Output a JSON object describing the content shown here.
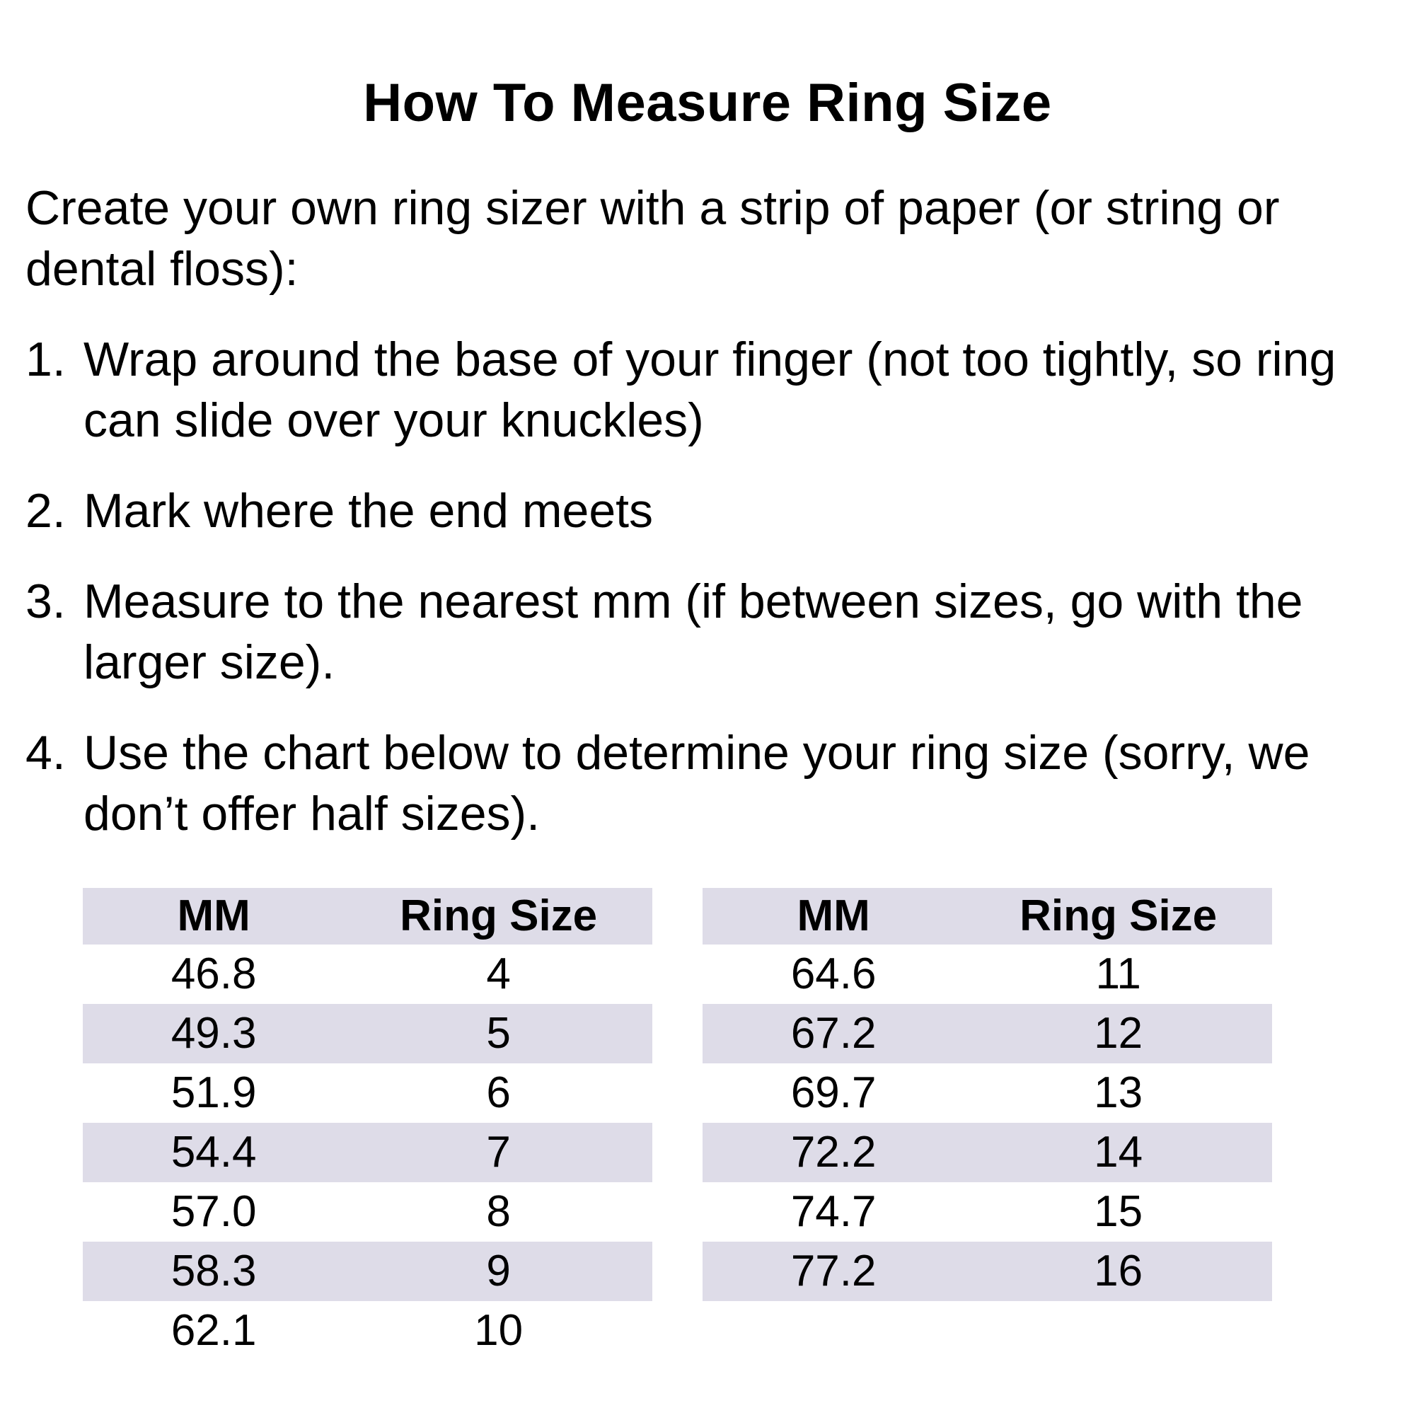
{
  "title": "How To Measure Ring Size",
  "intro": "Create your own ring sizer with a strip of paper (or string or\ndental floss):",
  "steps": [
    {
      "num": "1.",
      "text": "Wrap around the base of your finger (not too tightly, so ring\ncan slide over your knuckles)"
    },
    {
      "num": "2.",
      "text": "Mark where the end meets"
    },
    {
      "num": "3.",
      "text": "Measure to the nearest mm (if between sizes, go with the\nlarger size)."
    },
    {
      "num": "4.",
      "text": "Use the chart below to determine your ring size (sorry, we\ndon’t offer half sizes)."
    }
  ],
  "tables": [
    {
      "headers": [
        "MM",
        "Ring Size"
      ],
      "rows": [
        [
          "46.8",
          "4"
        ],
        [
          "49.3",
          "5"
        ],
        [
          "51.9",
          "6"
        ],
        [
          "54.4",
          "7"
        ],
        [
          "57.0",
          "8"
        ],
        [
          "58.3",
          "9"
        ],
        [
          "62.1",
          "10"
        ]
      ]
    },
    {
      "headers": [
        "MM",
        "Ring Size"
      ],
      "rows": [
        [
          "64.6",
          "11"
        ],
        [
          "67.2",
          "12"
        ],
        [
          "69.7",
          "13"
        ],
        [
          "72.2",
          "14"
        ],
        [
          "74.7",
          "15"
        ],
        [
          "77.2",
          "16"
        ]
      ]
    }
  ],
  "colors": {
    "stripe": "#dedce8",
    "text": "#000000",
    "background": "#ffffff"
  }
}
